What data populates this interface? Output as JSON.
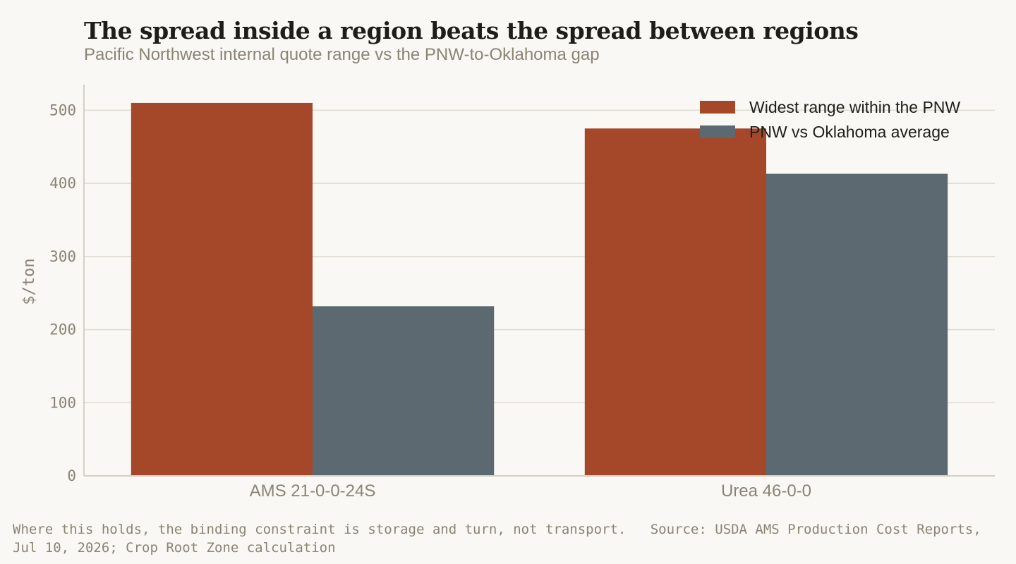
{
  "title": "The spread inside a region beats the spread between regions",
  "subtitle": "Pacific Northwest internal quote range vs the PNW-to-Oklahoma gap",
  "footer": {
    "note": "Where this holds, the binding constraint is storage and turn, not transport.",
    "source": "Source: USDA AMS Production Cost Reports, Jul 10, 2026; Crop Root Zone calculation"
  },
  "colors": {
    "background": "#f9f8f4",
    "grid": "#dedbd2",
    "axis": "#d4d0c5",
    "tick_text": "#8a8474",
    "legend_text": "#1f1d1a"
  },
  "chart_data": {
    "type": "bar",
    "categories": [
      "AMS 21-0-0-24S",
      "Urea 46-0-0"
    ],
    "series": [
      {
        "name": "Widest range within the PNW",
        "color": "#a5482a",
        "values": [
          510,
          475
        ]
      },
      {
        "name": "PNW vs Oklahoma average",
        "color": "#5c6970",
        "values": [
          232,
          413
        ]
      }
    ],
    "ylabel": "$/ton",
    "ylim": [
      0,
      535
    ],
    "yticks": [
      0,
      100,
      200,
      300,
      400,
      500
    ],
    "grid": true,
    "legend_position": "top-right"
  }
}
